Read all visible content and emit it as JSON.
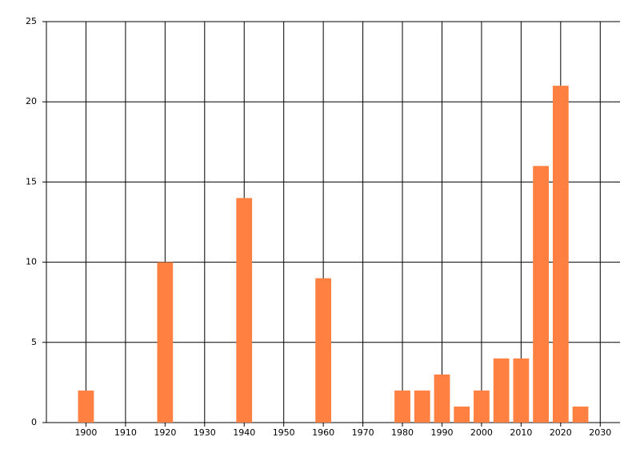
{
  "chart_data": {
    "type": "bar",
    "x": [
      1900,
      1920,
      1940,
      1960,
      1980,
      1985,
      1990,
      1995,
      2000,
      2005,
      2010,
      2015,
      2020,
      2025
    ],
    "values": [
      2,
      10,
      14,
      9,
      2,
      2,
      3,
      1,
      2,
      4,
      4,
      16,
      21,
      1
    ],
    "color": "#ff8040",
    "xlim": [
      1890,
      2035
    ],
    "xticks": [
      1900,
      1910,
      1920,
      1930,
      1940,
      1950,
      1960,
      1970,
      1980,
      1990,
      2000,
      2010,
      2020,
      2030
    ],
    "ylim": [
      0,
      25
    ],
    "yticks": [
      0,
      5,
      10,
      15,
      20,
      25
    ],
    "grid": true
  }
}
